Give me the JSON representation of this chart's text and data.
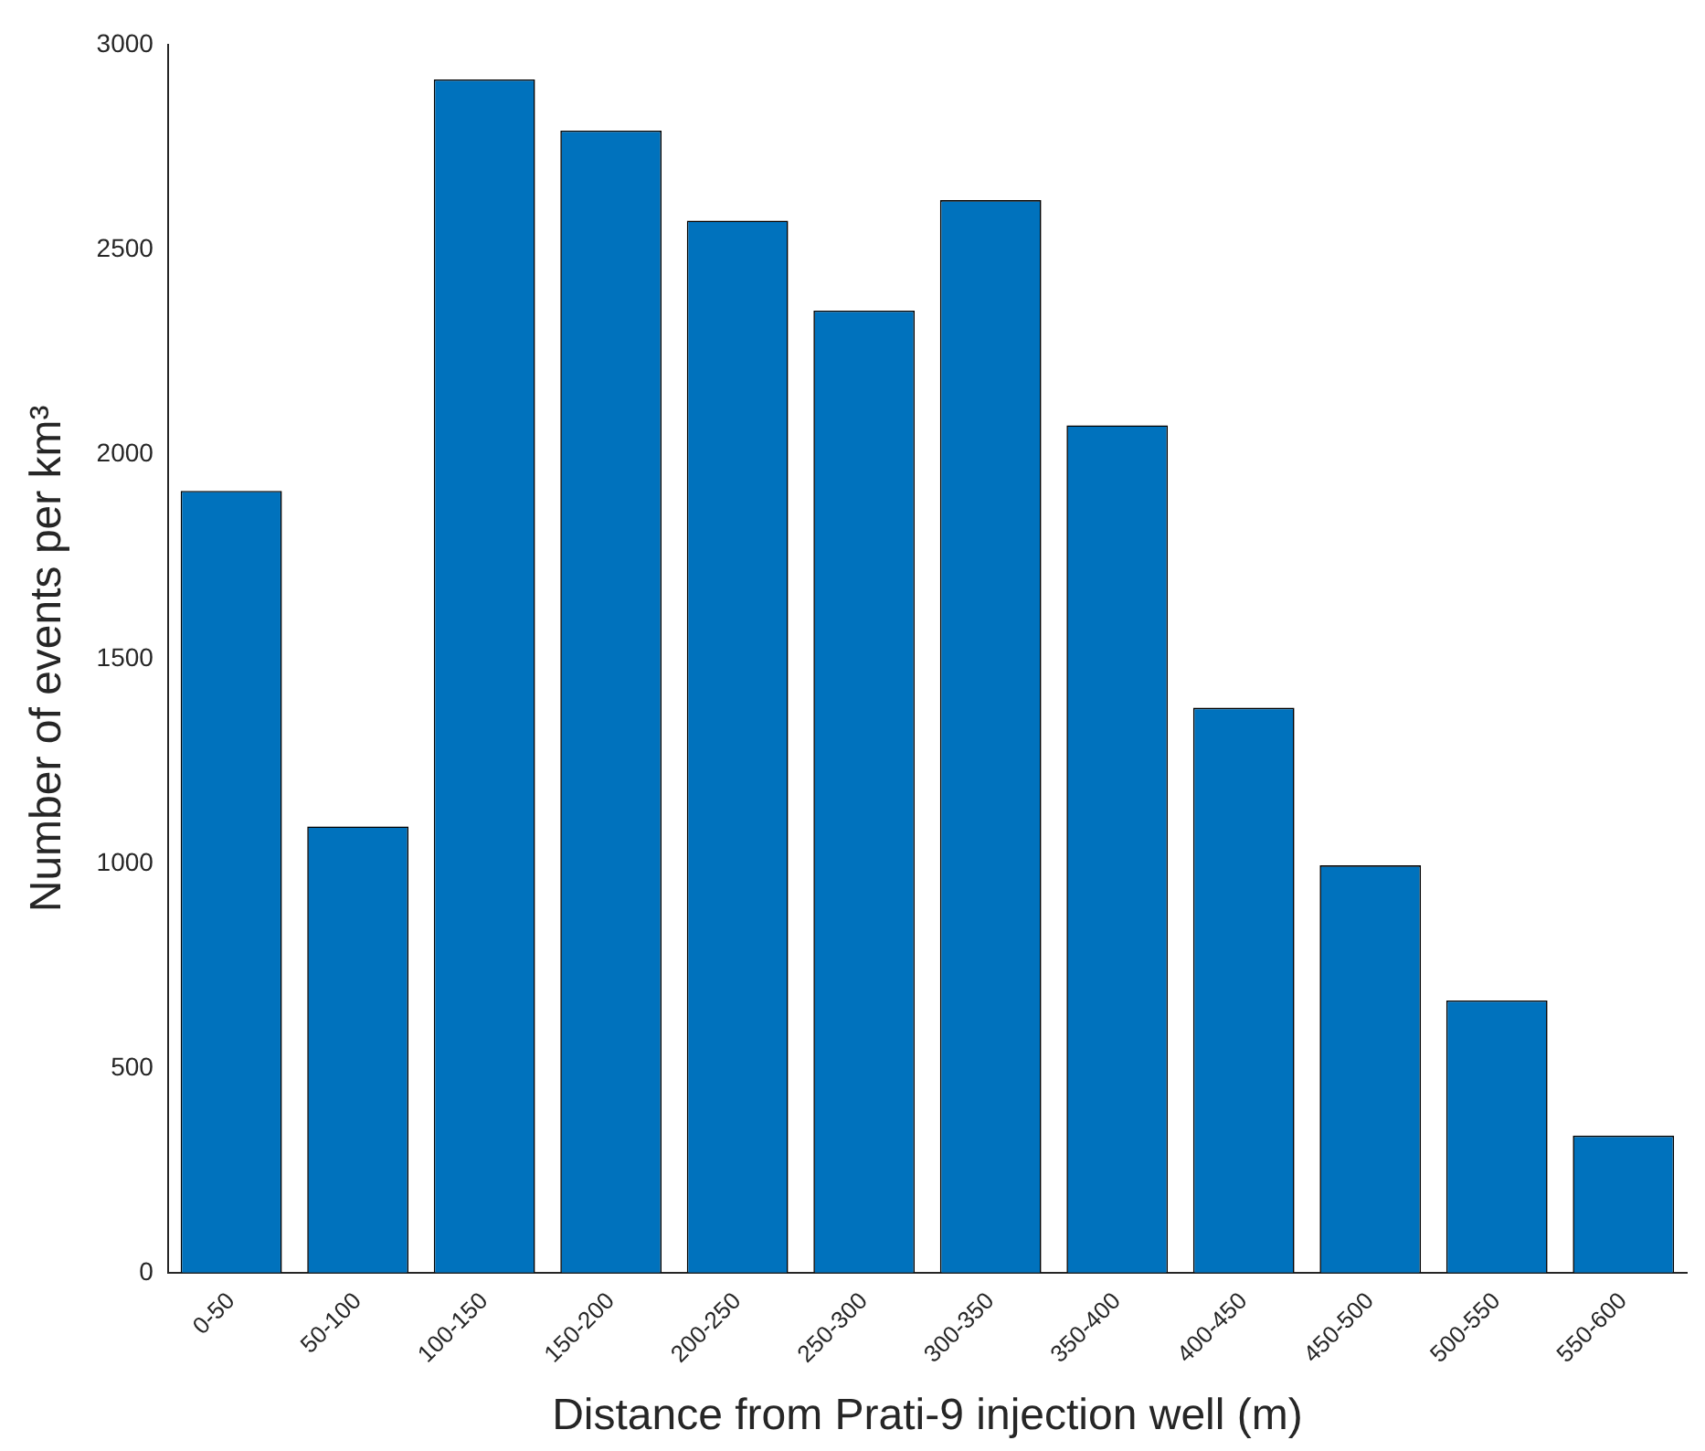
{
  "chart_data": {
    "type": "bar",
    "xlabel": "Distance from Prati-9 injection well (m)",
    "ylabel": "Number of events per km³",
    "categories": [
      "0-50",
      "50-100",
      "100-150",
      "150-200",
      "200-250",
      "250-300",
      "300-350",
      "350-400",
      "400-450",
      "450-500",
      "500-550",
      "550-600"
    ],
    "values": [
      1910,
      1090,
      2915,
      2790,
      2570,
      2350,
      2620,
      2070,
      1380,
      995,
      665,
      335
    ],
    "color": "#0072bd",
    "ylim": [
      0,
      3000
    ],
    "yticks": [
      0,
      500,
      1000,
      1500,
      2000,
      2500,
      3000
    ],
    "grid": false,
    "legend": false
  }
}
